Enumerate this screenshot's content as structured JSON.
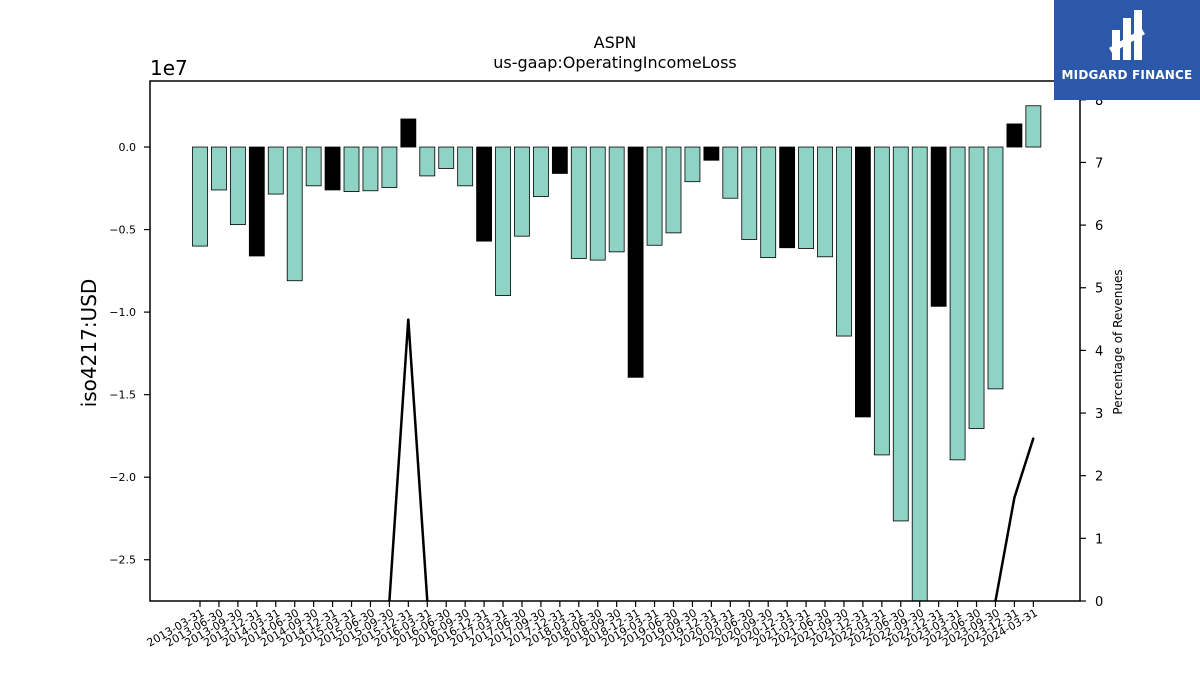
{
  "chart_data": {
    "type": "bar",
    "title": "ASPN",
    "subtitle": "us-gaap:OperatingIncomeLoss",
    "ylabel": "iso4217:USD",
    "y2label": "Percentage of Revenues",
    "scale_label": "1e7",
    "ylim": [
      -2.75,
      0.4
    ],
    "y2lim": [
      0,
      8.3
    ],
    "yticks": [
      0.0,
      -0.5,
      -1.0,
      -1.5,
      -2.0,
      -2.5
    ],
    "y2ticks": [
      0,
      1,
      2,
      3,
      4,
      5,
      6,
      7,
      8
    ],
    "categories": [
      "2013-03-31",
      "2013-06-30",
      "2013-09-30",
      "2013-12-31",
      "2014-03-31",
      "2014-06-30",
      "2014-09-30",
      "2014-12-31",
      "2015-03-31",
      "2015-06-30",
      "2015-09-30",
      "2015-12-31",
      "2016-03-31",
      "2016-06-30",
      "2016-09-30",
      "2016-12-31",
      "2017-03-31",
      "2017-06-30",
      "2017-09-30",
      "2017-12-31",
      "2018-03-31",
      "2018-06-30",
      "2018-09-30",
      "2018-12-31",
      "2019-03-31",
      "2019-06-30",
      "2019-09-30",
      "2019-12-31",
      "2020-03-31",
      "2020-06-30",
      "2020-09-30",
      "2020-12-31",
      "2021-03-31",
      "2021-06-30",
      "2021-09-30",
      "2021-12-31",
      "2022-03-31",
      "2022-06-30",
      "2022-09-30",
      "2022-12-31",
      "2023-03-31",
      "2023-06-30",
      "2023-09-30",
      "2023-12-31",
      "2024-03-31"
    ],
    "values": [
      -0.6,
      -0.26,
      -0.47,
      -0.66,
      -0.285,
      -0.81,
      -0.235,
      -0.26,
      -0.27,
      -0.265,
      -0.245,
      0.17,
      -0.175,
      -0.13,
      -0.235,
      -0.57,
      -0.9,
      -0.54,
      -0.3,
      -0.16,
      -0.675,
      -0.685,
      -0.635,
      -1.395,
      -0.595,
      -0.52,
      -0.21,
      -0.08,
      -0.31,
      -0.56,
      -0.67,
      -0.61,
      -0.615,
      -0.665,
      -1.145,
      -1.635,
      -1.865,
      -2.265,
      -2.8,
      -0.965,
      -1.895,
      -1.705,
      -1.465,
      0.14,
      0.25
    ],
    "highlight": [
      false,
      false,
      false,
      true,
      false,
      false,
      false,
      true,
      false,
      false,
      false,
      true,
      false,
      false,
      false,
      true,
      false,
      false,
      false,
      true,
      false,
      false,
      false,
      true,
      false,
      false,
      false,
      true,
      false,
      false,
      false,
      true,
      false,
      false,
      false,
      true,
      false,
      false,
      false,
      true,
      false,
      false,
      false,
      true,
      false
    ],
    "bar_color": "#8fd3c5",
    "highlight_color": "#000000",
    "pct_series": [
      {
        "x": "2015-09-30",
        "y": 0
      },
      {
        "x": "2015-12-31",
        "y": 4.5
      },
      {
        "x": "2016-03-31",
        "y": 0
      },
      {
        "x": "2023-09-30",
        "y": 0
      },
      {
        "x": "2023-12-31",
        "y": 1.65
      },
      {
        "x": "2024-03-31",
        "y": 2.6
      }
    ]
  },
  "logo": {
    "text": "MIDGARD FINANCE",
    "bg": "#2b58a8"
  }
}
